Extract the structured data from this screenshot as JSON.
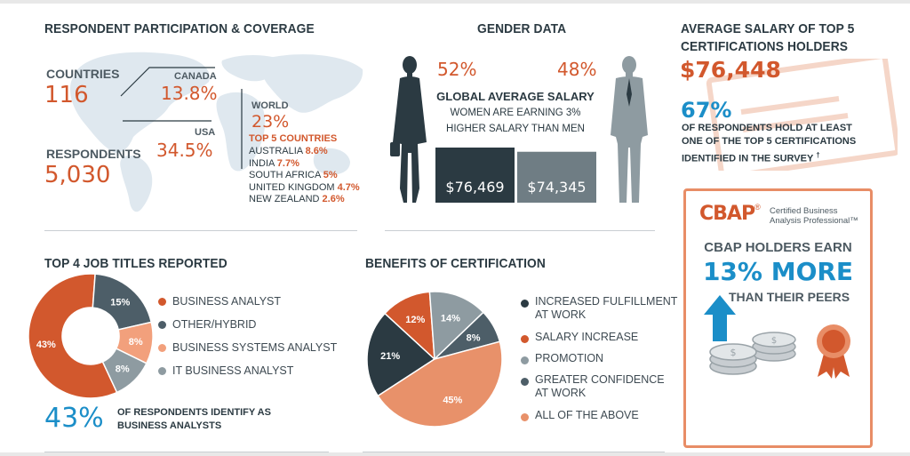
{
  "colors": {
    "orange": "#d2582d",
    "dark": "#2b3a42",
    "slate": "#4d5e68",
    "gray": "#8e9ba1",
    "peach": "#f2a07c",
    "salmon": "#e8916a",
    "blue": "#1b8ec8"
  },
  "participation": {
    "title": "RESPONDENT PARTICIPATION & COVERAGE",
    "countries_label": "COUNTRIES",
    "countries_value": "116",
    "respondents_label": "RESPONDENTS",
    "respondents_value": "5,030",
    "canada_label": "CANADA",
    "canada_value": "13.8%",
    "usa_label": "USA",
    "usa_value": "34.5%",
    "world_label": "WORLD",
    "world_value": "23%",
    "top5_label": "TOP 5 COUNTRIES",
    "top5": [
      {
        "name": "AUSTRALIA",
        "value": "8.6%"
      },
      {
        "name": "INDIA",
        "value": "7.7%"
      },
      {
        "name": "SOUTH AFRICA",
        "value": "5%"
      },
      {
        "name": "UNITED KINGDOM",
        "value": "4.7%"
      },
      {
        "name": "NEW ZEALAND",
        "value": "2.6%"
      }
    ]
  },
  "gender": {
    "title": "GENDER DATA",
    "women_pct": "52%",
    "men_pct": "48%",
    "salary_heading": "GLOBAL AVERAGE SALARY",
    "salary_line1": "WOMEN ARE EARNING 3%",
    "salary_line2": "HIGHER SALARY THAN MEN",
    "women_salary": "$76,469",
    "men_salary": "$74,345"
  },
  "certs": {
    "title_line1": "AVERAGE SALARY OF TOP 5",
    "title_line2": "CERTIFICATIONS HOLDERS",
    "salary": "$76,448",
    "pct": "67%",
    "desc_line1": "OF RESPONDENTS HOLD AT LEAST",
    "desc_line2": "ONE OF THE TOP 5 CERTIFICATIONS",
    "desc_line3": "IDENTIFIED IN THE SURVEY",
    "desc_mark": "†"
  },
  "cbap": {
    "logo": "CBAP",
    "reg": "®",
    "sub_line1": "Certified Business",
    "sub_line2": "Analysis Professional™",
    "earn": "CBAP HOLDERS EARN",
    "more": "13% MORE",
    "peers": "THAN THEIR PEERS",
    "icons": [
      "up-arrow-icon",
      "coins-icon",
      "award-ribbon-icon"
    ]
  },
  "jobs": {
    "title": "TOP 4 JOB TITLES REPORTED",
    "footer_pct": "43%",
    "footer_line1": "OF RESPONDENTS IDENTIFY AS",
    "footer_line2": "BUSINESS ANALYSTS"
  },
  "benefits": {
    "title": "BENEFITS OF CERTIFICATION"
  },
  "chart_data": [
    {
      "type": "pie",
      "title": "TOP 4 JOB TITLES REPORTED",
      "style": "donut",
      "legend_position": "right",
      "slices": [
        {
          "name": "BUSINESS ANALYST",
          "value": 43,
          "label": "43%",
          "color": "#d2582d"
        },
        {
          "name": "OTHER/HYBRID",
          "value": 15,
          "label": "15%",
          "color": "#4d5e68"
        },
        {
          "name": "BUSINESS SYSTEMS ANALYST",
          "value": 8,
          "label": "8%",
          "color": "#f2a07c"
        },
        {
          "name": "IT BUSINESS ANALYST",
          "value": 8,
          "label": "8%",
          "color": "#8e9ba1"
        }
      ]
    },
    {
      "type": "pie",
      "title": "BENEFITS OF CERTIFICATION",
      "legend_position": "right",
      "slices": [
        {
          "name": "INCREASED FULFILLMENT AT WORK",
          "value": 21,
          "label": "21%",
          "color": "#2b3a42"
        },
        {
          "name": "SALARY INCREASE",
          "value": 12,
          "label": "12%",
          "color": "#d2582d"
        },
        {
          "name": "PROMOTION",
          "value": 14,
          "label": "14%",
          "color": "#8e9ba1"
        },
        {
          "name": "GREATER CONFIDENCE AT WORK",
          "value": 8,
          "label": "8%",
          "color": "#4d5e68"
        },
        {
          "name": "ALL OF THE ABOVE",
          "value": 45,
          "label": "45%",
          "color": "#e8916a"
        }
      ],
      "legend": [
        {
          "line1": "INCREASED FULFILLMENT",
          "line2": "AT WORK",
          "color": "#2b3a42"
        },
        {
          "line1": "SALARY INCREASE",
          "line2": "",
          "color": "#d2582d"
        },
        {
          "line1": "PROMOTION",
          "line2": "",
          "color": "#8e9ba1"
        },
        {
          "line1": "GREATER CONFIDENCE",
          "line2": "AT WORK",
          "color": "#4d5e68"
        },
        {
          "line1": "ALL OF THE ABOVE",
          "line2": "",
          "color": "#e8916a"
        }
      ]
    },
    {
      "type": "bar",
      "title": "GLOBAL AVERAGE SALARY",
      "categories": [
        "WOMEN",
        "MEN"
      ],
      "values": [
        76469,
        74345
      ],
      "value_labels": [
        "$76,469",
        "$74,345"
      ],
      "colors": [
        "#2b3a42",
        "#6f7d84"
      ]
    }
  ]
}
